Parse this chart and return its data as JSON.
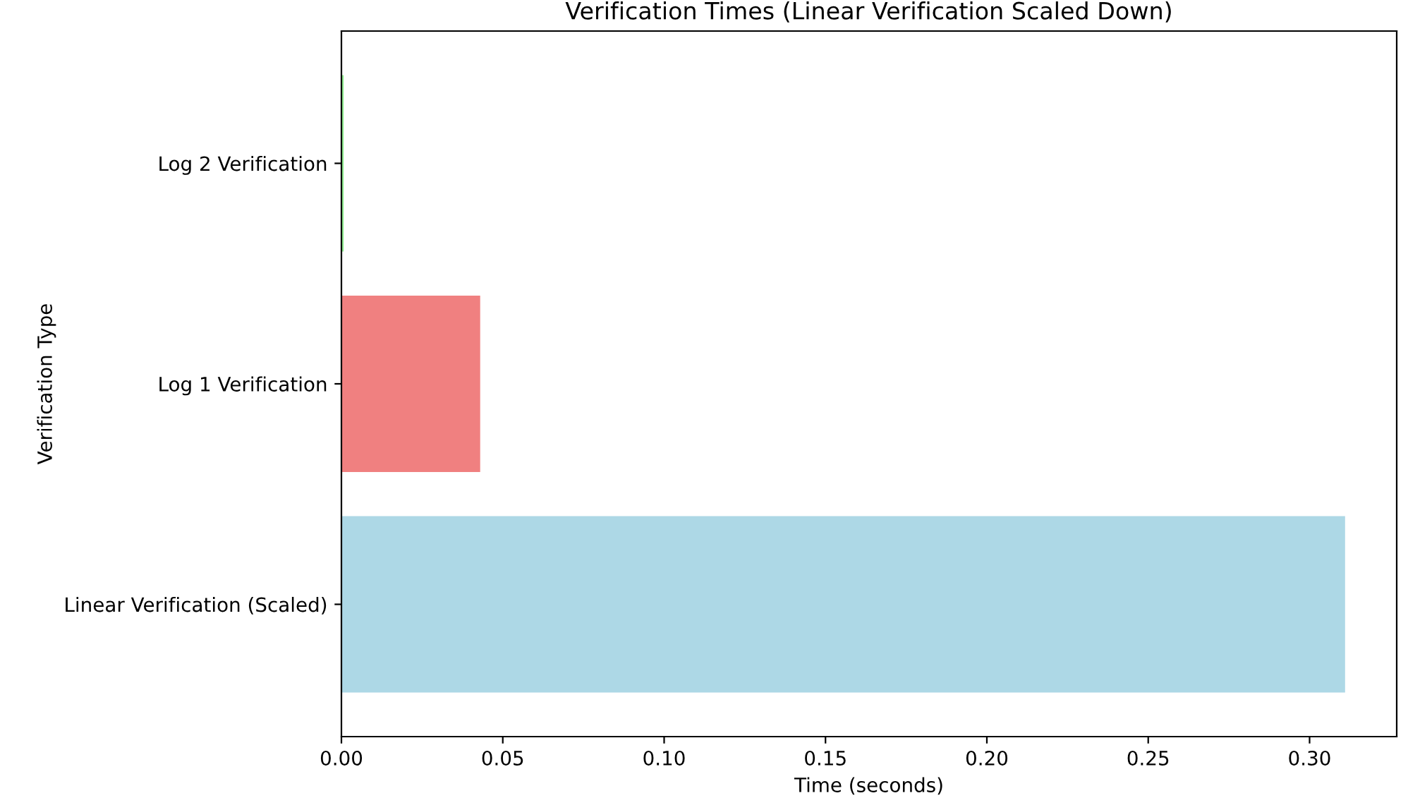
{
  "chart_data": {
    "type": "bar",
    "orientation": "horizontal",
    "title": "Verification Times (Linear Verification Scaled Down)",
    "xlabel": "Time (seconds)",
    "ylabel": "Verification Type",
    "categories": [
      "Log 2 Verification",
      "Log 1 Verification",
      "Linear Verification (Scaled)"
    ],
    "values": [
      0.0007,
      0.043,
      0.311
    ],
    "colors": [
      "#90ee90",
      "#f08080",
      "#add8e6"
    ],
    "xlim": [
      0,
      0.327
    ],
    "xticks": [
      {
        "value": 0,
        "label": "0.00"
      },
      {
        "value": 0.05,
        "label": "0.05"
      },
      {
        "value": 0.1,
        "label": "0.10"
      },
      {
        "value": 0.15,
        "label": "0.15"
      },
      {
        "value": 0.2,
        "label": "0.20"
      },
      {
        "value": 0.25,
        "label": "0.25"
      },
      {
        "value": 0.3,
        "label": "0.30"
      }
    ],
    "grid": false,
    "legend": false
  }
}
